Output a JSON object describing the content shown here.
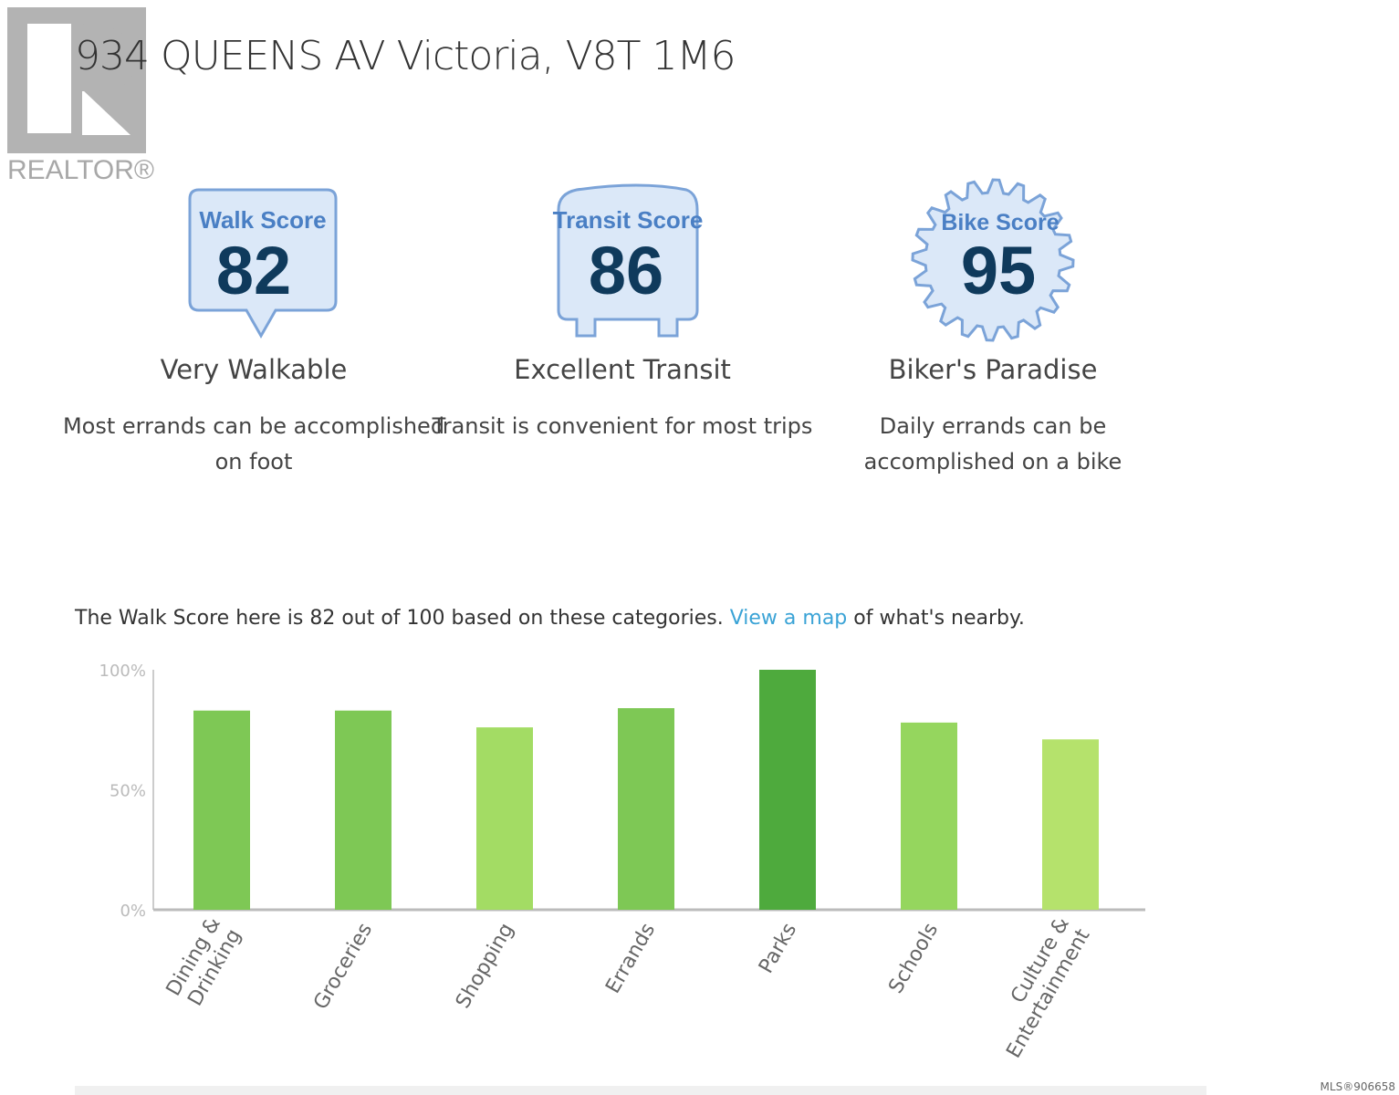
{
  "logo": {
    "text": "REALTOR®"
  },
  "header": {
    "title": "934 QUEENS AV Victoria, V8T 1M6"
  },
  "scores": [
    {
      "label": "Walk Score",
      "value": "82",
      "desc": "Very Walkable",
      "sub": "Most errands can be accomplished on foot",
      "icon": "walk-bubble"
    },
    {
      "label": "Transit Score",
      "value": "86",
      "desc": "Excellent Transit",
      "sub": "Transit is convenient for most trips",
      "icon": "bus"
    },
    {
      "label": "Bike Score",
      "value": "95",
      "desc": "Biker's Paradise",
      "sub": "Daily errands can be accomplished on a bike",
      "icon": "gear"
    }
  ],
  "intro": {
    "before": "The Walk Score here is 82 out of 100 based on these categories. ",
    "link": "View a map",
    "after": " of what's nearby."
  },
  "chart_data": {
    "type": "bar",
    "categories": [
      "Dining & Drinking",
      "Groceries",
      "Shopping",
      "Errands",
      "Parks",
      "Schools",
      "Culture & Entertainment"
    ],
    "values": [
      83,
      83,
      76,
      84,
      100,
      78,
      71
    ],
    "colors": [
      "#7ec855",
      "#7ec855",
      "#a3dc64",
      "#7ec855",
      "#4eaa3d",
      "#95d65e",
      "#b5e26c"
    ],
    "yticks": [
      "0%",
      "50%",
      "100%"
    ],
    "ylim": [
      0,
      100
    ],
    "grid": false
  },
  "footer": {
    "mls": "MLS®906658"
  },
  "colors": {
    "badge_fill": "#dbe8f8",
    "badge_stroke": "#7ba3d8",
    "badge_label": "#4a7fc4",
    "badge_number": "#0f3a5c"
  }
}
